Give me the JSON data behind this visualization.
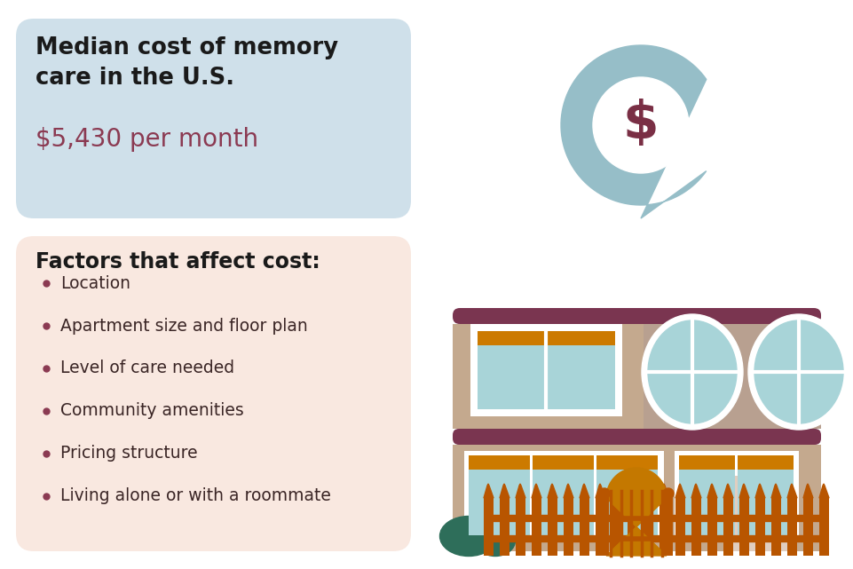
{
  "bg_color": "#ffffff",
  "top_box_color": "#cfe0ea",
  "bottom_box_color": "#f9e8e0",
  "title_text": "Median cost of memory\ncare in the U.S.",
  "title_color": "#1a1a1a",
  "cost_text": "$5,430 per month",
  "cost_color": "#8B3A52",
  "factors_title": "Factors that affect cost:",
  "factors_title_color": "#1a1a1a",
  "bullet_color": "#8B3A52",
  "bullet_items": [
    "Location",
    "Apartment size and floor plan",
    "Level of care needed",
    "Community amenities",
    "Pricing structure",
    "Living alone or with a roommate"
  ],
  "bullet_text_color": "#3a2525",
  "pin_color": "#96bec8",
  "pin_white": "#ffffff",
  "dollar_color": "#7a2f45",
  "wall_left_color": "#c4a98e",
  "wall_right_color": "#b8a090",
  "roof_color": "#7a3550",
  "win_frame_color": "#cc7a00",
  "win_glass_color": "#a8d4d8",
  "win_white": "#ffffff",
  "door_color": "#e0cec0",
  "fence_color": "#b85500",
  "fence_light": "#cc7700",
  "gate_color": "#c47800",
  "plant_color": "#2e6e5a"
}
